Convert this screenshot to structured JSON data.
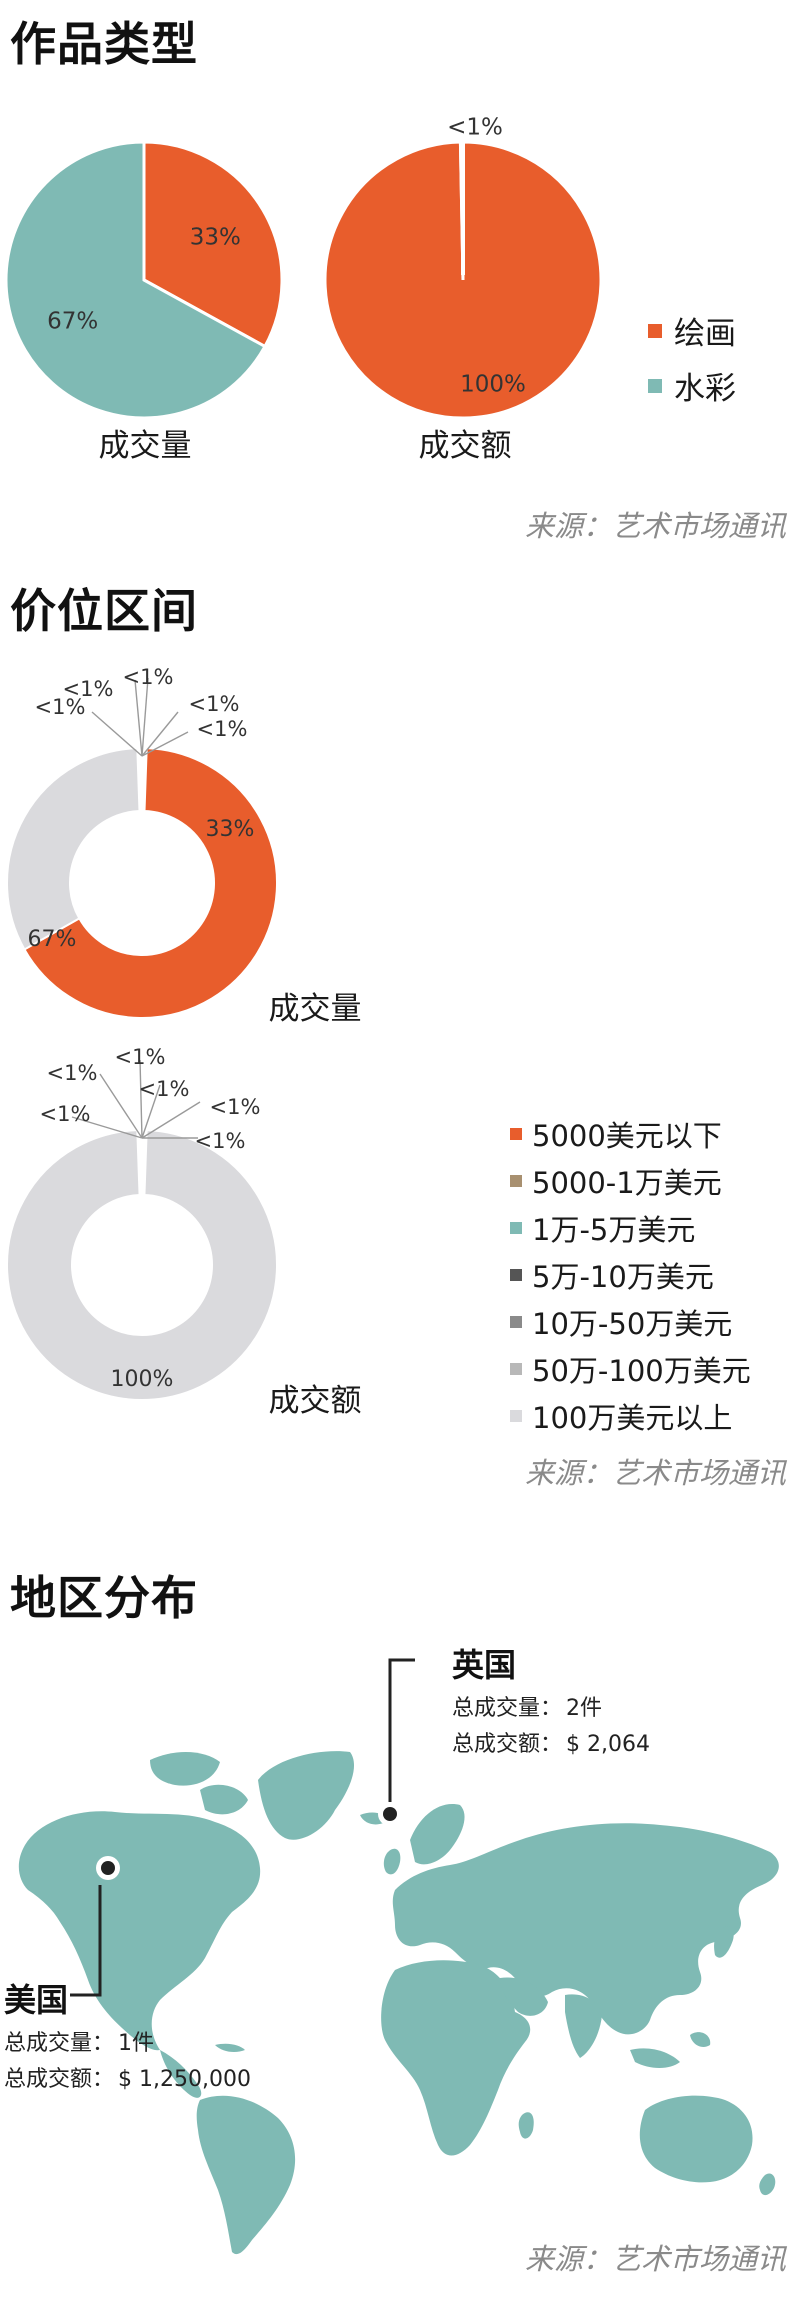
{
  "sections": {
    "type": {
      "title": "作品类型",
      "source": "来源：艺术市场通讯"
    },
    "price": {
      "title": "价位区间",
      "source": "来源：艺术市场通讯"
    },
    "region": {
      "title": "地区分布",
      "source": "来源：艺术市场通讯"
    }
  },
  "colors": {
    "painting": "#e85d2c",
    "watercolor": "#7fbab4",
    "under5000": "#e85d2c",
    "5000to10k": "#a89070",
    "10kto50k": "#7fbab4",
    "50kto100k": "#555555",
    "100kto500k": "#8a8a8a",
    "500kto1m": "#b8b8b8",
    "over1m": "#dadadd",
    "map_land": "#7fbab4"
  },
  "chart_data": [
    {
      "type": "pie",
      "title": "成交量",
      "slices": [
        {
          "label": "绘画",
          "value": 33,
          "display": "33%"
        },
        {
          "label": "水彩",
          "value": 67,
          "display": "67%"
        }
      ]
    },
    {
      "type": "pie",
      "title": "成交额",
      "slices": [
        {
          "label": "绘画",
          "value": 100,
          "display": "100%"
        },
        {
          "label": "水彩",
          "value": 0.3,
          "display": "<1%"
        }
      ]
    },
    {
      "type": "pie",
      "subtype": "donut",
      "title": "成交量",
      "slices": [
        {
          "label": "5000美元以下",
          "value": 67,
          "display": "67%"
        },
        {
          "label": "5000-1万美元",
          "value": 0,
          "display": "<1%"
        },
        {
          "label": "1万-5万美元",
          "value": 0,
          "display": "<1%"
        },
        {
          "label": "5万-10万美元",
          "value": 0,
          "display": "<1%"
        },
        {
          "label": "10万-50万美元",
          "value": 0,
          "display": "<1%"
        },
        {
          "label": "50万-100万美元",
          "value": 0,
          "display": "<1%"
        },
        {
          "label": "100万美元以上",
          "value": 33,
          "display": "33%"
        }
      ]
    },
    {
      "type": "pie",
      "subtype": "donut",
      "title": "成交额",
      "slices": [
        {
          "label": "5000美元以下",
          "value": 0,
          "display": "<1%"
        },
        {
          "label": "5000-1万美元",
          "value": 0,
          "display": "<1%"
        },
        {
          "label": "1万-5万美元",
          "value": 0,
          "display": "<1%"
        },
        {
          "label": "5万-10万美元",
          "value": 0,
          "display": "<1%"
        },
        {
          "label": "10万-50万美元",
          "value": 0,
          "display": "<1%"
        },
        {
          "label": "50万-100万美元",
          "value": 0,
          "display": "<1%"
        },
        {
          "label": "100万美元以上",
          "value": 100,
          "display": "100%"
        }
      ]
    }
  ],
  "legend_type": [
    {
      "label": "绘画",
      "color": "#e85d2c"
    },
    {
      "label": "水彩",
      "color": "#7fbab4"
    }
  ],
  "legend_price": [
    {
      "label": "5000美元以下",
      "color": "#e85d2c"
    },
    {
      "label": "5000-1万美元",
      "color": "#a89070"
    },
    {
      "label": "1万-5万美元",
      "color": "#7fbab4"
    },
    {
      "label": "5万-10万美元",
      "color": "#555555"
    },
    {
      "label": "10万-50万美元",
      "color": "#8a8a8a"
    },
    {
      "label": "50万-100万美元",
      "color": "#b8b8b8"
    },
    {
      "label": "100万美元以上",
      "color": "#dadadd"
    }
  ],
  "map": {
    "uk": {
      "name": "英国",
      "volume_label": "总成交量：",
      "volume_value": "2件",
      "amount_label": "总成交额：",
      "amount_value": "$ 2,064"
    },
    "usa": {
      "name": "美国",
      "volume_label": "总成交量：",
      "volume_value": "1件",
      "amount_label": "总成交额：",
      "amount_value": "$ 1,250,000"
    }
  }
}
